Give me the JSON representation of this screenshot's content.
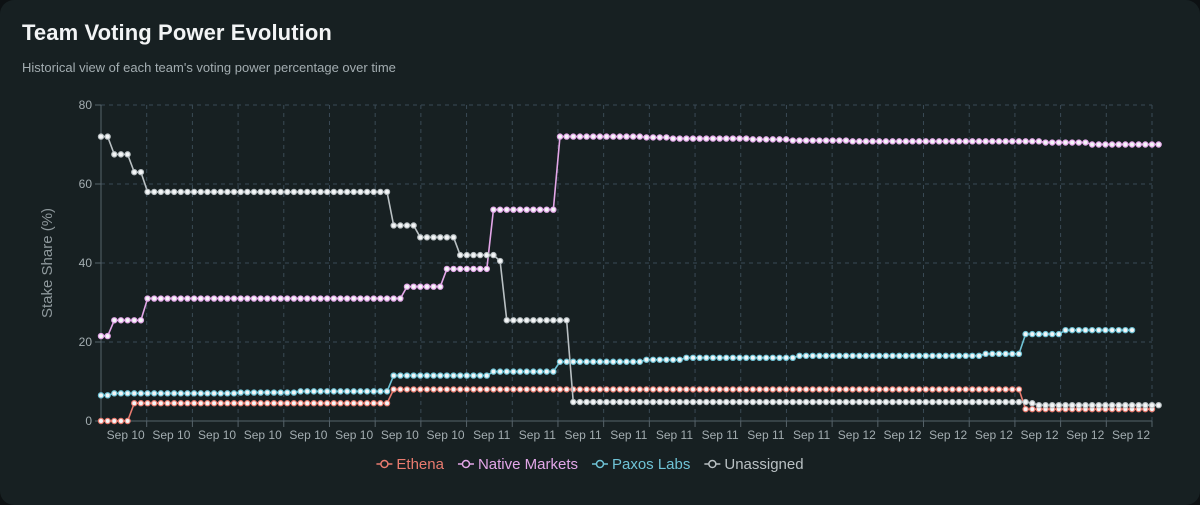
{
  "title": "Team Voting Power Evolution",
  "subtitle": "Historical view of each team's voting power percentage over time",
  "chart_data": {
    "type": "line",
    "ylabel": "Stake Share (%)",
    "ylim": [
      0,
      80
    ],
    "yticks": [
      0,
      20,
      40,
      60,
      80
    ],
    "xtick_labels": [
      "Sep 10",
      "Sep 10",
      "Sep 10",
      "Sep 10",
      "Sep 10",
      "Sep 10",
      "Sep 10",
      "Sep 10",
      "Sep 11",
      "Sep 11",
      "Sep 11",
      "Sep 11",
      "Sep 11",
      "Sep 11",
      "Sep 11",
      "Sep 11",
      "Sep 12",
      "Sep 12",
      "Sep 12",
      "Sep 12",
      "Sep 12",
      "Sep 12",
      "Sep 12"
    ],
    "grid": true,
    "legend_position": "bottom",
    "series": [
      {
        "name": "Ethena",
        "color": "#e97b6f",
        "values": [
          0,
          0,
          0,
          0,
          0,
          4.5,
          4.5,
          4.5,
          4.5,
          4.5,
          4.5,
          4.5,
          4.5,
          4.5,
          4.5,
          4.5,
          4.5,
          4.5,
          4.5,
          4.5,
          4.5,
          4.5,
          4.5,
          4.5,
          4.5,
          4.5,
          4.5,
          4.5,
          4.5,
          4.5,
          4.5,
          4.5,
          4.5,
          4.5,
          4.5,
          4.5,
          4.5,
          4.5,
          4.5,
          4.5,
          4.5,
          4.5,
          4.5,
          4.5,
          8,
          8,
          8,
          8,
          8,
          8,
          8,
          8,
          8,
          8,
          8,
          8,
          8,
          8,
          8,
          8,
          8,
          8,
          8,
          8,
          8,
          8,
          8,
          8,
          8,
          8,
          8,
          8,
          8,
          8,
          8,
          8,
          8,
          8,
          8,
          8,
          8,
          8,
          8,
          8,
          8,
          8,
          8,
          8,
          8,
          8,
          8,
          8,
          8,
          8,
          8,
          8,
          8,
          8,
          8,
          8,
          8,
          8,
          8,
          8,
          8,
          8,
          8,
          8,
          8,
          8,
          8,
          8,
          8,
          8,
          8,
          8,
          8,
          8,
          8,
          8,
          8,
          8,
          8,
          8,
          8,
          8,
          8,
          8,
          8,
          8,
          8,
          8,
          8,
          8,
          8,
          8,
          8,
          8,
          8,
          3,
          3,
          3,
          3,
          3,
          3,
          3,
          3,
          3,
          3,
          3,
          3,
          3,
          3,
          3,
          3,
          3,
          3,
          3,
          3
        ]
      },
      {
        "name": "Native Markets",
        "color": "#e3a6e8",
        "values": [
          21.5,
          21.5,
          25.5,
          25.5,
          25.5,
          25.5,
          25.5,
          31,
          31,
          31,
          31,
          31,
          31,
          31,
          31,
          31,
          31,
          31,
          31,
          31,
          31,
          31,
          31,
          31,
          31,
          31,
          31,
          31,
          31,
          31,
          31,
          31,
          31,
          31,
          31,
          31,
          31,
          31,
          31,
          31,
          31,
          31,
          31,
          31,
          31,
          31,
          34,
          34,
          34,
          34,
          34,
          34,
          38.5,
          38.5,
          38.5,
          38.5,
          38.5,
          38.5,
          38.5,
          53.5,
          53.5,
          53.5,
          53.5,
          53.5,
          53.5,
          53.5,
          53.5,
          53.5,
          53.5,
          72,
          72,
          72,
          72,
          72,
          72,
          72,
          72,
          72,
          72,
          72,
          72,
          72,
          71.8,
          71.8,
          71.8,
          71.8,
          71.5,
          71.5,
          71.5,
          71.5,
          71.5,
          71.5,
          71.5,
          71.5,
          71.5,
          71.5,
          71.5,
          71.5,
          71.3,
          71.3,
          71.3,
          71.3,
          71.3,
          71.3,
          71,
          71,
          71,
          71,
          71,
          71,
          71,
          71,
          71,
          70.8,
          70.8,
          70.8,
          70.8,
          70.8,
          70.8,
          70.8,
          70.8,
          70.8,
          70.8,
          70.8,
          70.8,
          70.8,
          70.8,
          70.8,
          70.8,
          70.8,
          70.8,
          70.8,
          70.8,
          70.8,
          70.8,
          70.8,
          70.8,
          70.8,
          70.8,
          70.8,
          70.8,
          70.8,
          70.5,
          70.5,
          70.5,
          70.5,
          70.5,
          70.5,
          70.5,
          70,
          70,
          70,
          70,
          70,
          70,
          70,
          70,
          70,
          70,
          70
        ]
      },
      {
        "name": "Paxos Labs",
        "color": "#6fc3d6",
        "values": [
          6.5,
          6.5,
          7,
          7,
          7,
          7,
          7,
          7,
          7,
          7,
          7,
          7,
          7,
          7,
          7,
          7,
          7,
          7,
          7,
          7,
          7,
          7.2,
          7.2,
          7.2,
          7.2,
          7.2,
          7.2,
          7.2,
          7.2,
          7.2,
          7.5,
          7.5,
          7.5,
          7.5,
          7.5,
          7.5,
          7.5,
          7.5,
          7.5,
          7.5,
          7.5,
          7.5,
          7.5,
          7.5,
          11.5,
          11.5,
          11.5,
          11.5,
          11.5,
          11.5,
          11.5,
          11.5,
          11.5,
          11.5,
          11.5,
          11.5,
          11.5,
          11.5,
          11.5,
          12.5,
          12.5,
          12.5,
          12.5,
          12.5,
          12.5,
          12.5,
          12.5,
          12.5,
          12.5,
          15,
          15,
          15,
          15,
          15,
          15,
          15,
          15,
          15,
          15,
          15,
          15,
          15,
          15.5,
          15.5,
          15.5,
          15.5,
          15.5,
          15.5,
          16,
          16,
          16,
          16,
          16,
          16,
          16,
          16,
          16,
          16,
          16,
          16,
          16,
          16,
          16,
          16,
          16,
          16.5,
          16.5,
          16.5,
          16.5,
          16.5,
          16.5,
          16.5,
          16.5,
          16.5,
          16.5,
          16.5,
          16.5,
          16.5,
          16.5,
          16.5,
          16.5,
          16.5,
          16.5,
          16.5,
          16.5,
          16.5,
          16.5,
          16.5,
          16.5,
          16.5,
          16.5,
          16.5,
          16.5,
          17,
          17,
          17,
          17,
          17,
          17,
          22,
          22,
          22,
          22,
          22,
          22,
          23,
          23,
          23,
          23,
          23,
          23,
          23,
          23,
          23,
          23,
          23
        ]
      },
      {
        "name": "Unassigned",
        "color": "#b9c0c3",
        "values": [
          72,
          72,
          67.5,
          67.5,
          67.5,
          63,
          63,
          58,
          58,
          58,
          58,
          58,
          58,
          58,
          58,
          58,
          58,
          58,
          58,
          58,
          58,
          58,
          58,
          58,
          58,
          58,
          58,
          58,
          58,
          58,
          58,
          58,
          58,
          58,
          58,
          58,
          58,
          58,
          58,
          58,
          58,
          58,
          58,
          58,
          49.5,
          49.5,
          49.5,
          49.5,
          46.5,
          46.5,
          46.5,
          46.5,
          46.5,
          46.5,
          42,
          42,
          42,
          42,
          42,
          42,
          40.5,
          25.5,
          25.5,
          25.5,
          25.5,
          25.5,
          25.5,
          25.5,
          25.5,
          25.5,
          25.5,
          4.8,
          4.8,
          4.8,
          4.8,
          4.8,
          4.8,
          4.8,
          4.8,
          4.8,
          4.8,
          4.8,
          4.8,
          4.8,
          4.8,
          4.8,
          4.8,
          4.8,
          4.8,
          4.8,
          4.8,
          4.8,
          4.8,
          4.8,
          4.8,
          4.8,
          4.8,
          4.8,
          4.8,
          4.8,
          4.8,
          4.8,
          4.8,
          4.8,
          4.8,
          4.8,
          4.8,
          4.8,
          4.8,
          4.8,
          4.8,
          4.8,
          4.8,
          4.8,
          4.8,
          4.8,
          4.8,
          4.8,
          4.8,
          4.8,
          4.8,
          4.8,
          4.8,
          4.8,
          4.8,
          4.8,
          4.8,
          4.8,
          4.8,
          4.8,
          4.8,
          4.8,
          4.8,
          4.8,
          4.8,
          4.8,
          4.8,
          4.8,
          4.8,
          4.8,
          4.5,
          4,
          4,
          4,
          4,
          4,
          4,
          4,
          4,
          4,
          4,
          4,
          4,
          4,
          4,
          4,
          4,
          4,
          4,
          4
        ]
      }
    ]
  }
}
